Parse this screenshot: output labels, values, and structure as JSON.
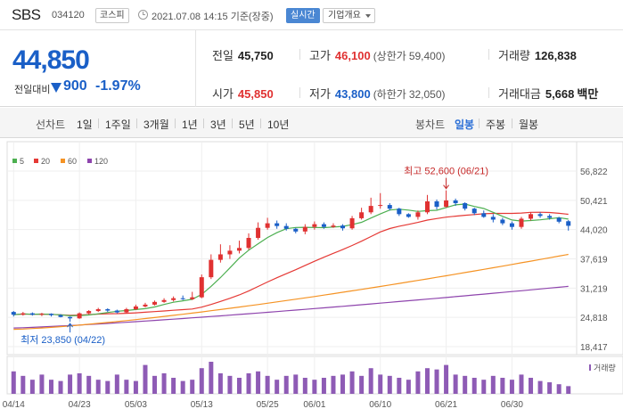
{
  "header": {
    "name": "SBS",
    "code": "034120",
    "market": "코스피",
    "datetime": "2021.07.08 14:15 기준(장중)",
    "realtime_label": "실시간",
    "overview_label": "기업개요"
  },
  "price": {
    "current": "44,850",
    "change_label": "전일대비",
    "change_amount": "900",
    "change_rate": "-1.97%",
    "direction": "down"
  },
  "stats": {
    "prev": {
      "label": "전일",
      "value": "45,750"
    },
    "high": {
      "label": "고가",
      "value": "46,100",
      "extra_label": "(상한가",
      "extra_value": "59,400)"
    },
    "volume": {
      "label": "거래량",
      "value": "126,838"
    },
    "open": {
      "label": "시가",
      "value": "45,850"
    },
    "low": {
      "label": "저가",
      "value": "43,800",
      "extra_label": "(하한가",
      "extra_value": "32,050)"
    },
    "amount": {
      "label": "거래대금",
      "value": "5,668",
      "unit": "백만"
    }
  },
  "periods": {
    "line_label": "선차트",
    "line_items": [
      "1일",
      "1주일",
      "3개월",
      "1년",
      "3년",
      "5년",
      "10년"
    ],
    "candle_label": "봉차트",
    "candle_items": [
      "일봉",
      "주봉",
      "월봉"
    ],
    "active_candle": "일봉"
  },
  "colors": {
    "up": "#e03131",
    "down": "#1a5fc7",
    "ma5": "#4caf50",
    "ma20": "#e53935",
    "ma60": "#f59324",
    "ma120": "#8e44ad",
    "volume": "#8e5bb5"
  },
  "chart_data": {
    "type": "candlestick",
    "legend": [
      {
        "name": "5",
        "color": "#4caf50"
      },
      {
        "name": "20",
        "color": "#e53935"
      },
      {
        "name": "60",
        "color": "#f59324"
      },
      {
        "name": "120",
        "color": "#8e44ad"
      }
    ],
    "y_ticks": [
      56822,
      50421,
      44020,
      37619,
      31219,
      24818,
      18417
    ],
    "y_tick_labels": [
      "56,822",
      "50,421",
      "44,020",
      "37,619",
      "31,219",
      "24,818",
      "18,417"
    ],
    "ylim": [
      18417,
      56822
    ],
    "x_tick_labels": [
      {
        "i": 0,
        "label": "04/14"
      },
      {
        "i": 7,
        "label": "04/23"
      },
      {
        "i": 13,
        "label": "05/03"
      },
      {
        "i": 20,
        "label": "05/13"
      },
      {
        "i": 27,
        "label": "05/25"
      },
      {
        "i": 32,
        "label": "06/01"
      },
      {
        "i": 39,
        "label": "06/10"
      },
      {
        "i": 46,
        "label": "06/21"
      },
      {
        "i": 53,
        "label": "06/30"
      }
    ],
    "candles": [
      [
        26000,
        25400,
        26200,
        25000
      ],
      [
        25400,
        25700,
        26000,
        25200
      ],
      [
        25700,
        25400,
        25900,
        25200
      ],
      [
        25400,
        25600,
        25800,
        25100
      ],
      [
        25600,
        25300,
        25700,
        25000
      ],
      [
        25300,
        24900,
        25500,
        24800
      ],
      [
        24900,
        24600,
        25000,
        23850
      ],
      [
        24600,
        25700,
        25900,
        24500
      ],
      [
        25700,
        26200,
        26400,
        25500
      ],
      [
        26200,
        26600,
        26900,
        26000
      ],
      [
        26600,
        26300,
        26800,
        26000
      ],
      [
        26300,
        25900,
        26500,
        25700
      ],
      [
        25900,
        26600,
        26900,
        25800
      ],
      [
        26600,
        27200,
        27600,
        26400
      ],
      [
        27200,
        27600,
        28000,
        27000
      ],
      [
        27600,
        28200,
        28500,
        27400
      ],
      [
        28200,
        28600,
        29000,
        28000
      ],
      [
        28600,
        29000,
        29400,
        28300
      ],
      [
        29000,
        28800,
        29600,
        28600
      ],
      [
        28800,
        29200,
        30400,
        28600
      ],
      [
        29200,
        33600,
        34200,
        29000
      ],
      [
        33600,
        37400,
        38600,
        33200
      ],
      [
        37400,
        38600,
        40800,
        36800
      ],
      [
        38600,
        39400,
        40600,
        37600
      ],
      [
        39400,
        40000,
        41600,
        38800
      ],
      [
        40000,
        42200,
        43200,
        39600
      ],
      [
        42200,
        44400,
        45600,
        41800
      ],
      [
        44400,
        45400,
        46600,
        44000
      ],
      [
        45400,
        44800,
        46000,
        44200
      ],
      [
        44800,
        44200,
        45400,
        43800
      ],
      [
        44200,
        43600,
        44400,
        43200
      ],
      [
        43600,
        44600,
        45200,
        43000
      ],
      [
        44600,
        45200,
        45800,
        44000
      ],
      [
        45200,
        44600,
        45600,
        44200
      ],
      [
        44600,
        44900,
        45400,
        44400
      ],
      [
        44900,
        44300,
        45200,
        43800
      ],
      [
        44300,
        46500,
        47000,
        44000
      ],
      [
        46500,
        47800,
        48800,
        46200
      ],
      [
        47800,
        49200,
        51000,
        47400
      ],
      [
        49200,
        49400,
        52000,
        48600
      ],
      [
        49400,
        48600,
        49800,
        48200
      ],
      [
        48600,
        47400,
        48800,
        47000
      ],
      [
        47400,
        46800,
        47600,
        46600
      ],
      [
        46800,
        47800,
        48200,
        46200
      ],
      [
        47800,
        50200,
        51600,
        47400
      ],
      [
        50200,
        49000,
        50600,
        48400
      ],
      [
        49000,
        50400,
        52600,
        48800
      ],
      [
        50400,
        49800,
        50800,
        49200
      ],
      [
        49800,
        48600,
        50000,
        48200
      ],
      [
        48600,
        47600,
        48800,
        47200
      ],
      [
        47600,
        46800,
        48200,
        46600
      ],
      [
        46800,
        46200,
        47400,
        45600
      ],
      [
        46200,
        45400,
        46600,
        45000
      ],
      [
        45400,
        44600,
        45800,
        44000
      ],
      [
        44600,
        46400,
        46800,
        44200
      ],
      [
        46400,
        47400,
        47800,
        46000
      ],
      [
        47400,
        47000,
        47800,
        46600
      ],
      [
        47000,
        46600,
        47400,
        46200
      ],
      [
        46600,
        45750,
        46800,
        45400
      ],
      [
        45850,
        44850,
        46100,
        43800
      ]
    ],
    "volume_label": "거래량",
    "volumes": [
      35,
      28,
      22,
      30,
      22,
      20,
      30,
      32,
      28,
      22,
      20,
      30,
      22,
      20,
      45,
      28,
      32,
      25,
      20,
      22,
      40,
      50,
      32,
      28,
      25,
      32,
      35,
      28,
      22,
      28,
      30,
      25,
      22,
      25,
      28,
      30,
      35,
      28,
      40,
      30,
      28,
      25,
      22,
      35,
      40,
      38,
      45,
      30,
      28,
      25,
      22,
      28,
      25,
      22,
      30,
      25,
      20,
      18,
      15,
      12
    ],
    "annotations": {
      "high_label": "최고 52,600 (06/21)",
      "high_index": 46,
      "high_value": 52600,
      "low_label": "최저 23,850 (04/22)",
      "low_index": 6,
      "low_value": 23850
    }
  }
}
